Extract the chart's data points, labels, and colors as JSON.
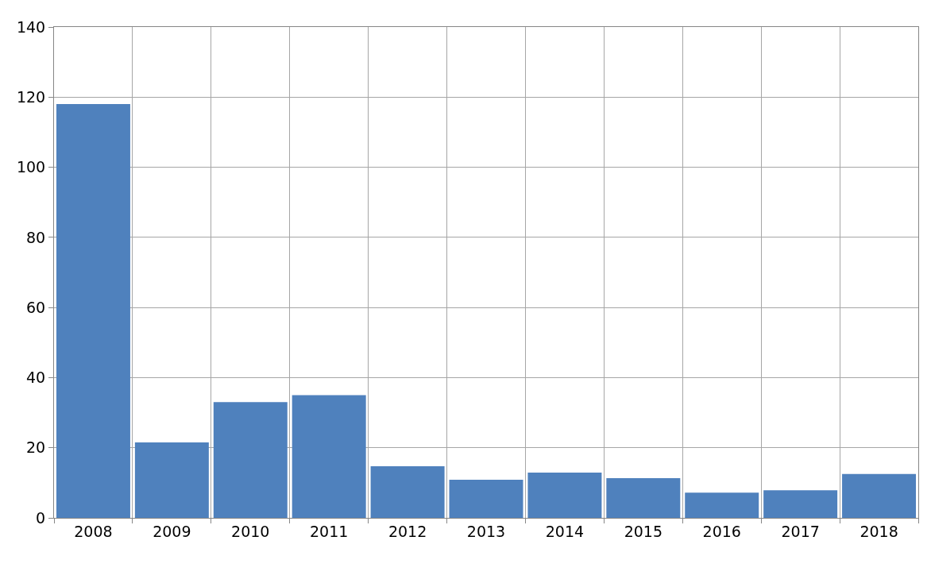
{
  "chart_data": {
    "type": "bar",
    "categories": [
      "2008",
      "2009",
      "2010",
      "2011",
      "2012",
      "2013",
      "2014",
      "2015",
      "2016",
      "2017",
      "2018"
    ],
    "values": [
      118,
      21.5,
      33,
      35,
      14.7,
      10.9,
      12.9,
      11.3,
      7.2,
      7.9,
      12.5
    ],
    "color": "#4f81bd",
    "ylim": [
      0,
      140
    ],
    "yticks": [
      0,
      20,
      40,
      60,
      80,
      100,
      120,
      140
    ],
    "grid": true,
    "legend": false
  }
}
